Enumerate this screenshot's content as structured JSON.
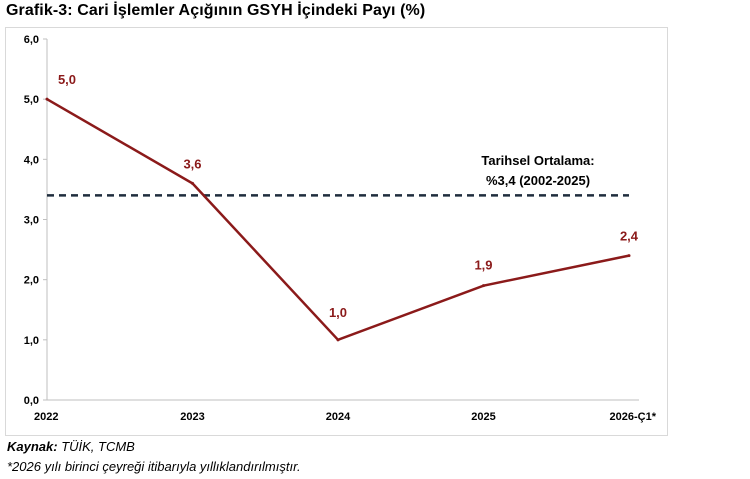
{
  "title": "Grafik-3: Cari İşlemler Açığının GSYH İçindeki Payı (%)",
  "source_label": "Kaynak:",
  "source_text": " TÜİK, TCMB",
  "footnote": "*2026 yılı birinci çeyreği itibarıyla yıllıklandırılmıştır.",
  "colors": {
    "line": "#8b1a1a",
    "average": "#1f2d3d",
    "axis": "#bfbfbf"
  },
  "chart_data": {
    "type": "line",
    "title": "Grafik-3: Cari İşlemler Açığının GSYH İçindeki Payı (%)",
    "categories": [
      "2022",
      "2023",
      "2024",
      "2025",
      "2026-Ç1*"
    ],
    "series": [
      {
        "values": [
          5.0,
          3.6,
          1.0,
          1.9,
          2.4
        ],
        "labels": [
          "5,0",
          "3,6",
          "1,0",
          "1,9",
          "2,4"
        ]
      }
    ],
    "reference_line": {
      "value": 3.4,
      "label_line1": "Tarihsel Ortalama:",
      "label_line2": "%3,4 (2002-2025)",
      "style": "dashed"
    },
    "ylim": [
      0,
      6
    ],
    "yticks": [
      "0,0",
      "1,0",
      "2,0",
      "3,0",
      "4,0",
      "5,0",
      "6,0"
    ],
    "xlabel": "",
    "ylabel": "",
    "grid": false,
    "legend": "none"
  }
}
